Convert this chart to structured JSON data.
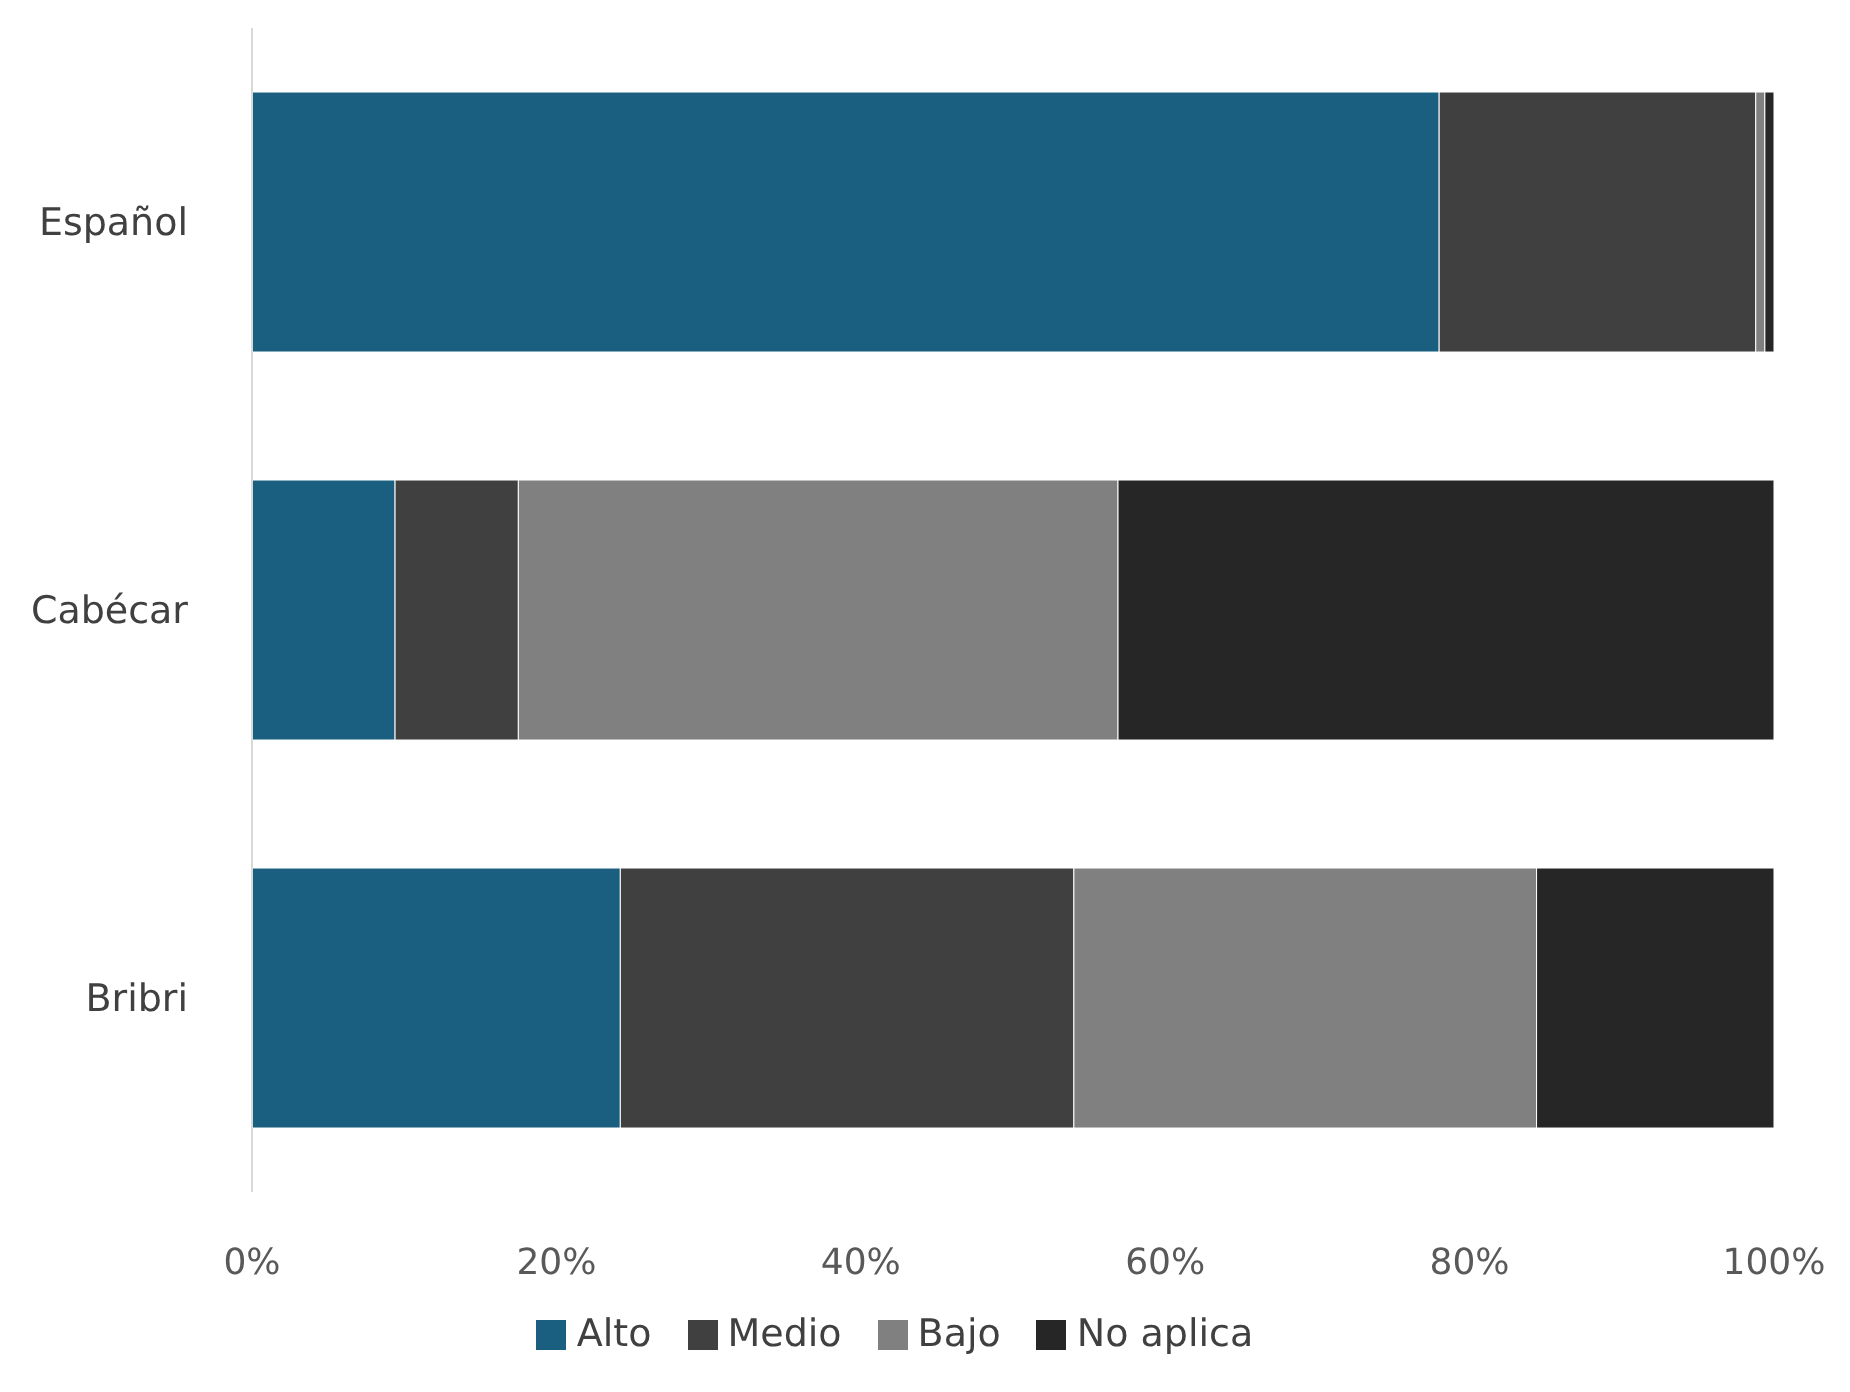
{
  "chart_data": {
    "type": "bar",
    "orientation": "horizontal",
    "stacked": true,
    "categories": [
      "Español",
      "Cabécar",
      "Bribri"
    ],
    "series": [
      {
        "name": "Alto",
        "color": "#1a5f80",
        "values": [
          78.0,
          9.4,
          24.2
        ]
      },
      {
        "name": "Medio",
        "color": "#404040",
        "values": [
          20.8,
          8.1,
          29.8
        ]
      },
      {
        "name": "Bajo",
        "color": "#808080",
        "values": [
          0.6,
          39.4,
          30.4
        ]
      },
      {
        "name": "No aplica",
        "color": "#262626",
        "values": [
          0.6,
          43.1,
          15.6
        ]
      }
    ],
    "xlim": [
      0,
      100
    ],
    "xticks": [
      {
        "value": 0,
        "label": "0%"
      },
      {
        "value": 20,
        "label": "20%"
      },
      {
        "value": 40,
        "label": "40%"
      },
      {
        "value": 60,
        "label": "60%"
      },
      {
        "value": 80,
        "label": "80%"
      },
      {
        "value": 100,
        "label": "100%"
      }
    ],
    "grid": false,
    "legend": "bottom"
  }
}
